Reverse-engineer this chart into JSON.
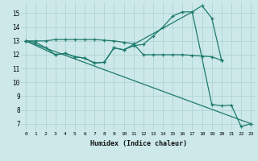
{
  "xlabel": "Humidex (Indice chaleur)",
  "background_color": "#cce8e8",
  "grid_color": "#aad0d0",
  "line_color": "#1e7b6e",
  "xlim": [
    -0.5,
    23.5
  ],
  "ylim": [
    6.5,
    15.8
  ],
  "xticks": [
    0,
    1,
    2,
    3,
    4,
    5,
    6,
    7,
    8,
    9,
    10,
    11,
    12,
    13,
    14,
    15,
    16,
    17,
    18,
    19,
    20,
    21,
    22,
    23
  ],
  "yticks": [
    7,
    8,
    9,
    10,
    11,
    12,
    13,
    14,
    15
  ],
  "line1_x": [
    0,
    1,
    2,
    3,
    4,
    5,
    6,
    7,
    8,
    9,
    10,
    11,
    12,
    13,
    14,
    15,
    16,
    17,
    18,
    19,
    20
  ],
  "line1_y": [
    13.0,
    12.9,
    12.5,
    12.0,
    12.1,
    11.85,
    11.75,
    11.4,
    11.45,
    12.5,
    12.35,
    12.65,
    12.75,
    13.35,
    14.0,
    14.8,
    15.1,
    15.1,
    15.55,
    14.65,
    11.6
  ],
  "line2_x": [
    0,
    1,
    2,
    3,
    4,
    5,
    6,
    7,
    8,
    9,
    10,
    11,
    12,
    13,
    14,
    15,
    16,
    17,
    18,
    19,
    20
  ],
  "line2_y": [
    13.0,
    13.0,
    13.0,
    13.1,
    13.1,
    13.1,
    13.1,
    13.1,
    13.05,
    13.0,
    12.9,
    12.8,
    12.0,
    12.0,
    12.0,
    12.0,
    12.0,
    11.95,
    11.9,
    11.85,
    11.6
  ],
  "line3_x": [
    0,
    3,
    4,
    5,
    6,
    7,
    8,
    9,
    10,
    17,
    19,
    20,
    21,
    22,
    23
  ],
  "line3_y": [
    13.0,
    12.0,
    12.1,
    11.85,
    11.75,
    11.4,
    11.45,
    12.5,
    12.35,
    15.1,
    8.4,
    8.3,
    8.35,
    6.8,
    7.0
  ],
  "line4_x": [
    0,
    23
  ],
  "line4_y": [
    13.0,
    7.0
  ]
}
